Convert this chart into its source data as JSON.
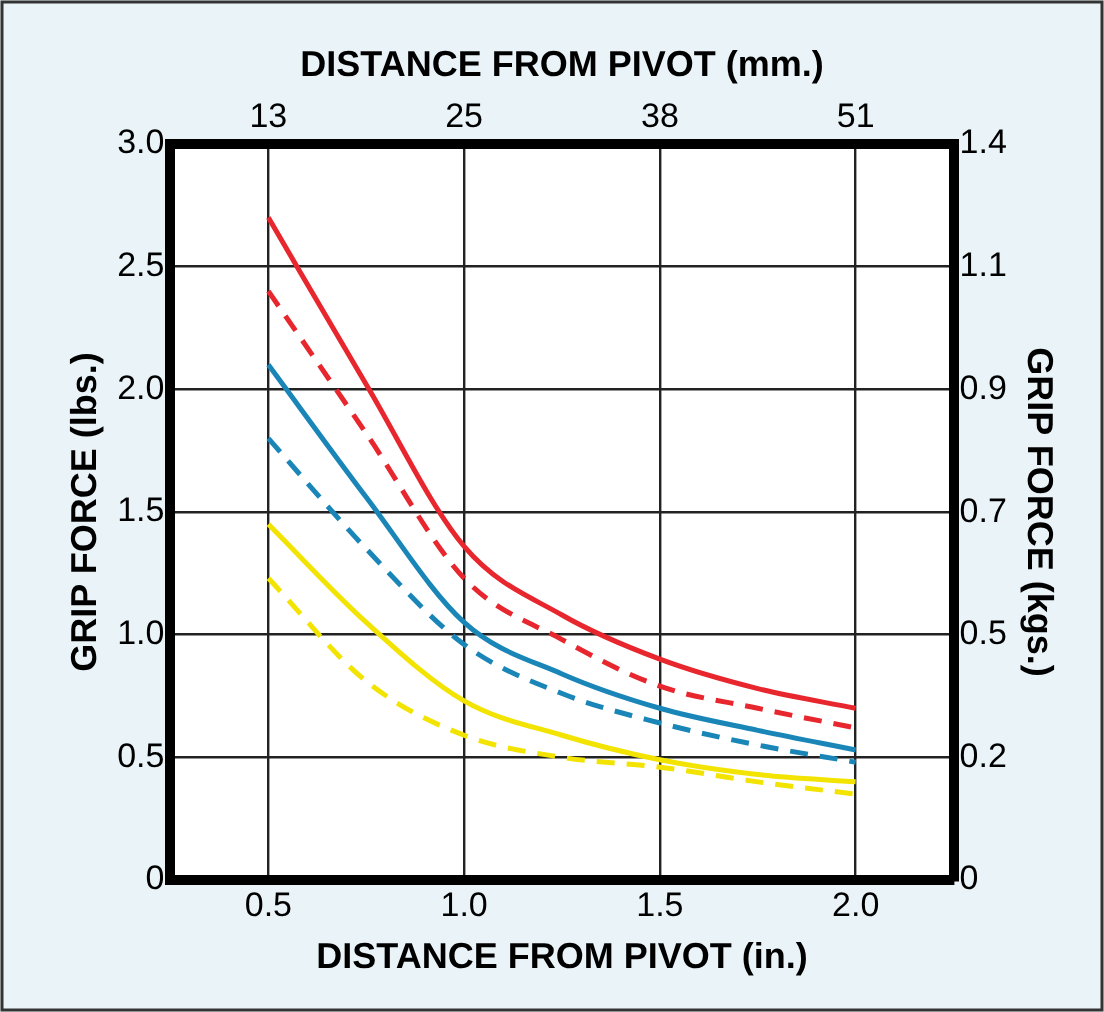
{
  "chart_data": {
    "type": "line",
    "xlabel": "DISTANCE FROM PIVOT (in.)",
    "x2label": "DISTANCE FROM PIVOT (mm.)",
    "ylabel": "GRIP FORCE (lbs.)",
    "y2label": "GRIP FORCE (kgs.)",
    "x": [
      0.5,
      0.75,
      1.0,
      1.25,
      1.5,
      1.75,
      2.0
    ],
    "xlim": [
      0.25,
      2.25
    ],
    "xticks": [
      {
        "value": 0.5,
        "label": "0.5"
      },
      {
        "value": 1.0,
        "label": "1.0"
      },
      {
        "value": 1.5,
        "label": "1.5"
      },
      {
        "value": 2.0,
        "label": "2.0"
      }
    ],
    "x2lim": [
      6.35,
      57.15
    ],
    "x2ticks": [
      {
        "value": 12.7,
        "label": "13"
      },
      {
        "value": 25.4,
        "label": "25"
      },
      {
        "value": 38.1,
        "label": "38"
      },
      {
        "value": 50.8,
        "label": "51"
      }
    ],
    "ylim": [
      0,
      3.0
    ],
    "yticks": [
      0,
      {
        "value": 0.5,
        "label": "0.5"
      },
      {
        "value": 1.0,
        "label": "1.0"
      },
      {
        "value": 1.5,
        "label": "1.5"
      },
      {
        "value": 2.0,
        "label": "2.0"
      },
      {
        "value": 2.5,
        "label": "2.5"
      },
      {
        "value": 3.0,
        "label": "3.0"
      }
    ],
    "y2lim": [
      0,
      1.361
    ],
    "y2ticks": [
      0,
      {
        "value": 0.227,
        "label": "0.2"
      },
      {
        "value": 0.454,
        "label": "0.5"
      },
      {
        "value": 0.68,
        "label": "0.7"
      },
      {
        "value": 0.907,
        "label": "0.9"
      },
      {
        "value": 1.134,
        "label": "1.1"
      },
      {
        "value": 1.361,
        "label": "1.4"
      }
    ],
    "grid": true,
    "legend": false,
    "marker": "none",
    "series": [
      {
        "color": "#e8262e",
        "line_style": "solid",
        "values": [
          2.7,
          2.02,
          1.36,
          1.08,
          0.9,
          0.78,
          0.7
        ]
      },
      {
        "color": "#e8262e",
        "line_style": "dashed",
        "values": [
          2.4,
          1.82,
          1.23,
          0.98,
          0.79,
          0.7,
          0.62
        ]
      },
      {
        "color": "#1a86b8",
        "line_style": "solid",
        "values": [
          2.1,
          1.56,
          1.05,
          0.84,
          0.7,
          0.61,
          0.53
        ]
      },
      {
        "color": "#1a86b8",
        "line_style": "dashed",
        "values": [
          1.8,
          1.35,
          0.96,
          0.76,
          0.64,
          0.55,
          0.48
        ]
      },
      {
        "color": "#f2e400",
        "line_style": "solid",
        "values": [
          1.45,
          1.05,
          0.73,
          0.59,
          0.49,
          0.43,
          0.4
        ]
      },
      {
        "color": "#f2e400",
        "line_style": "dashed",
        "values": [
          1.23,
          0.81,
          0.59,
          0.5,
          0.46,
          0.4,
          0.35
        ]
      }
    ]
  }
}
